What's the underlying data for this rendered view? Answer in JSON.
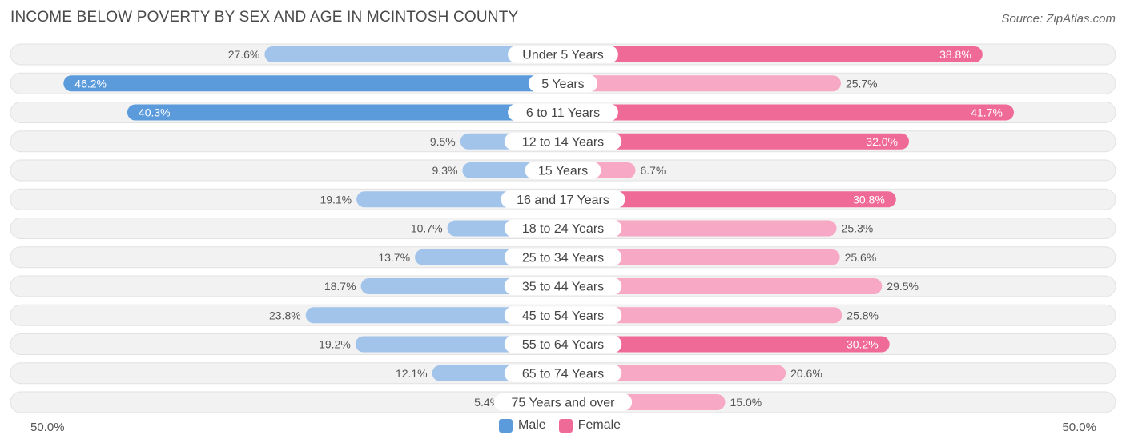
{
  "chart_data": {
    "type": "bar",
    "orientation": "horizontal-diverging",
    "title": "INCOME BELOW POVERTY BY SEX AND AGE IN MCINTOSH COUNTY",
    "source": "Source: ZipAtlas.com",
    "categories": [
      "Under 5 Years",
      "5 Years",
      "6 to 11 Years",
      "12 to 14 Years",
      "15 Years",
      "16 and 17 Years",
      "18 to 24 Years",
      "25 to 34 Years",
      "35 to 44 Years",
      "45 to 54 Years",
      "55 to 64 Years",
      "65 to 74 Years",
      "75 Years and over"
    ],
    "series": [
      {
        "name": "Male",
        "values": [
          27.6,
          46.2,
          40.3,
          9.5,
          9.3,
          19.1,
          10.7,
          13.7,
          18.7,
          23.8,
          19.2,
          12.1,
          5.4
        ]
      },
      {
        "name": "Female",
        "values": [
          38.8,
          25.7,
          41.7,
          32.0,
          6.7,
          30.8,
          25.3,
          25.6,
          29.5,
          25.8,
          30.2,
          20.6,
          15.0
        ]
      }
    ],
    "labels": {
      "male": [
        "27.6%",
        "46.2%",
        "40.3%",
        "9.5%",
        "9.3%",
        "19.1%",
        "10.7%",
        "13.7%",
        "18.7%",
        "23.8%",
        "19.2%",
        "12.1%",
        "5.4%"
      ],
      "female": [
        "38.8%",
        "25.7%",
        "41.7%",
        "32.0%",
        "6.7%",
        "30.8%",
        "25.3%",
        "25.6%",
        "29.5%",
        "25.8%",
        "30.2%",
        "20.6%",
        "15.0%"
      ]
    },
    "axis_min_label": "50.0%",
    "axis_max_label": "50.0%",
    "xlim": [
      0,
      50
    ],
    "legend": [
      "Male",
      "Female"
    ],
    "colors": {
      "male_dark": "#5b9bdc",
      "male_light": "#a3c4ea",
      "female_dark": "#f06a97",
      "female_light": "#f7a8c4",
      "track": "#f2f2f2",
      "track_border": "#e2e2e2"
    }
  }
}
